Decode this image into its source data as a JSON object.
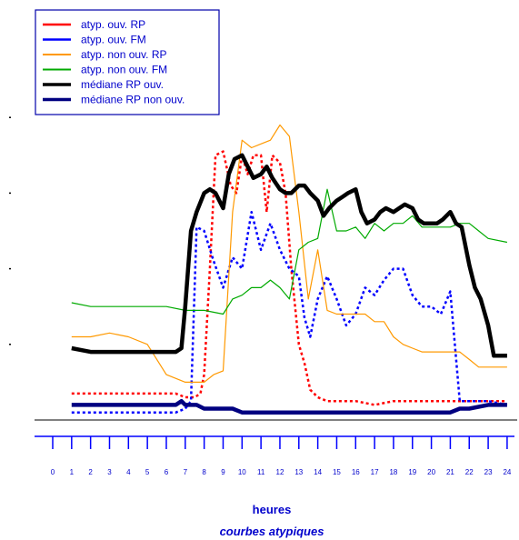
{
  "chart_data": {
    "type": "line",
    "title": "",
    "xlabel": "heures",
    "subtitle": "courbes atypiques",
    "ylabel": "",
    "xlim": [
      0,
      24
    ],
    "ylim": [
      0,
      100
    ],
    "legend_position": "top-left",
    "x_ticks": [
      0,
      1,
      2,
      3,
      4,
      5,
      6,
      7,
      8,
      9,
      10,
      11,
      12,
      13,
      14,
      15,
      16,
      17,
      18,
      19,
      20,
      21,
      22,
      23,
      24
    ],
    "x_tick_labels": [
      "0",
      "1",
      "2",
      "3",
      "4",
      "5",
      "6",
      "7",
      "8",
      "9",
      "10",
      "11",
      "12",
      "13",
      "14",
      "15",
      "16",
      "17",
      "18",
      "19",
      "20",
      "21",
      "22",
      "23",
      "24"
    ],
    "y_ticks": [
      0,
      20,
      40,
      60,
      80,
      100
    ],
    "series": [
      {
        "name": "atyp. ouv. RP",
        "color": "#ff0000",
        "dash": "dotted",
        "x": [
          1,
          2,
          3,
          4,
          5,
          6,
          6.5,
          7,
          7.5,
          7.8,
          8,
          8.3,
          8.6,
          9,
          9.4,
          9.7,
          10,
          10.3,
          10.6,
          11,
          11.3,
          11.6,
          12,
          12.3,
          12.6,
          13,
          13.3,
          13.6,
          14,
          14.5,
          15,
          16,
          17,
          18,
          19,
          20,
          21,
          22,
          23,
          24
        ],
        "y": [
          7,
          7,
          7,
          7,
          7,
          7,
          7,
          6,
          6,
          7,
          12,
          40,
          70,
          71,
          62,
          60,
          70,
          65,
          70,
          70,
          55,
          70,
          68,
          60,
          40,
          20,
          15,
          8,
          6,
          5,
          5,
          5,
          4,
          5,
          5,
          5,
          5,
          5,
          5,
          5
        ]
      },
      {
        "name": "atyp.  ouv. FM",
        "color": "#0000ff",
        "dash": "dotted",
        "x": [
          1,
          2,
          3,
          4,
          5,
          6,
          6.5,
          7,
          7.3,
          7.6,
          8,
          8.5,
          9,
          9.5,
          10,
          10.5,
          11,
          11.5,
          12,
          12.5,
          13,
          13.3,
          13.6,
          14,
          14.5,
          15,
          15.5,
          16,
          16.5,
          17,
          17.5,
          18,
          18.5,
          19,
          19.5,
          20,
          20.5,
          21,
          21.5,
          22,
          23,
          24
        ],
        "y": [
          2,
          2,
          2,
          2,
          2,
          2,
          2,
          3,
          5,
          51,
          50,
          42,
          35,
          43,
          40,
          55,
          45,
          52,
          45,
          40,
          38,
          27,
          22,
          32,
          38,
          32,
          25,
          28,
          35,
          33,
          37,
          40,
          40,
          33,
          30,
          30,
          28,
          34,
          5,
          5,
          5,
          4
        ]
      },
      {
        "name": "atyp. non ouv. RP",
        "color": "#ff9900",
        "dash": "solid",
        "x": [
          1,
          2,
          3,
          4,
          5,
          6,
          7,
          7.3,
          7.6,
          8,
          8.5,
          9,
          9.5,
          10,
          10.5,
          11,
          11.5,
          12,
          12.5,
          13,
          13.5,
          14,
          14.5,
          15,
          15.5,
          16,
          16.5,
          17,
          17.5,
          18,
          18.5,
          19,
          19.5,
          20,
          20.5,
          21,
          21.5,
          22,
          22.5,
          23,
          24
        ],
        "y": [
          22,
          22,
          23,
          22,
          20,
          12,
          10,
          10,
          10,
          10,
          12,
          13,
          55,
          74,
          72,
          73,
          74,
          78,
          75,
          55,
          32,
          45,
          29,
          28,
          28,
          28,
          28,
          26,
          26,
          22,
          20,
          19,
          18,
          18,
          18,
          18,
          18,
          16,
          14,
          14,
          14
        ]
      },
      {
        "name": "atyp. non ouv. FM",
        "color": "#00aa00",
        "dash": "solid",
        "x": [
          1,
          2,
          3,
          4,
          5,
          6,
          7,
          8,
          9,
          9.5,
          10,
          10.5,
          11,
          11.5,
          12,
          12.5,
          13,
          13.5,
          14,
          14.5,
          15,
          15.5,
          16,
          16.5,
          17,
          17.5,
          18,
          18.5,
          19,
          19.5,
          20,
          20.5,
          21,
          21.5,
          22,
          22.5,
          23,
          24
        ],
        "y": [
          31,
          30,
          30,
          30,
          30,
          30,
          29,
          29,
          28,
          32,
          33,
          35,
          35,
          37,
          35,
          32,
          45,
          47,
          48,
          61,
          50,
          50,
          51,
          48,
          52,
          50,
          52,
          52,
          54,
          51,
          51,
          51,
          51,
          52,
          52,
          50,
          48,
          47
        ]
      },
      {
        "name": "médiane RP ouv.",
        "color": "#000000",
        "dash": "solid",
        "x": [
          1,
          2,
          3,
          4,
          5,
          6,
          6.5,
          6.8,
          7,
          7.3,
          7.6,
          8,
          8.3,
          8.6,
          9,
          9.3,
          9.6,
          10,
          10.3,
          10.6,
          11,
          11.3,
          11.6,
          12,
          12.3,
          12.6,
          13,
          13.3,
          13.6,
          14,
          14.3,
          14.6,
          15,
          15.3,
          15.6,
          16,
          16.3,
          16.6,
          17,
          17.3,
          17.6,
          18,
          18.3,
          18.6,
          19,
          19.3,
          19.6,
          20,
          20.3,
          20.6,
          21,
          21.3,
          21.6,
          22,
          22.3,
          22.6,
          23,
          23.3,
          23.6,
          24
        ],
        "y": [
          19,
          18,
          18,
          18,
          18,
          18,
          18,
          19,
          30,
          50,
          55,
          60,
          61,
          60,
          56,
          65,
          69,
          70,
          67,
          64,
          65,
          67,
          64,
          61,
          60,
          60,
          62,
          62,
          60,
          58,
          54,
          56,
          58,
          59,
          60,
          61,
          55,
          52,
          53,
          55,
          56,
          55,
          56,
          57,
          56,
          53,
          52,
          52,
          52,
          53,
          55,
          52,
          51,
          41,
          35,
          32,
          25,
          17,
          17,
          17
        ]
      },
      {
        "name": "médiane RP non ouv.",
        "color": "#000080",
        "dash": "solid",
        "x": [
          1,
          2,
          3,
          4,
          5,
          6,
          6.5,
          6.8,
          7,
          7.3,
          7.6,
          8,
          8.5,
          9,
          9.5,
          10,
          11,
          12,
          13,
          14,
          15,
          16,
          17,
          18,
          19,
          20,
          21,
          21.5,
          22,
          23,
          24
        ],
        "y": [
          4,
          4,
          4,
          4,
          4,
          4,
          4,
          5,
          4,
          4,
          4,
          3,
          3,
          3,
          3,
          2,
          2,
          2,
          2,
          2,
          2,
          2,
          2,
          2,
          2,
          2,
          2,
          3,
          3,
          4,
          4
        ]
      }
    ]
  }
}
